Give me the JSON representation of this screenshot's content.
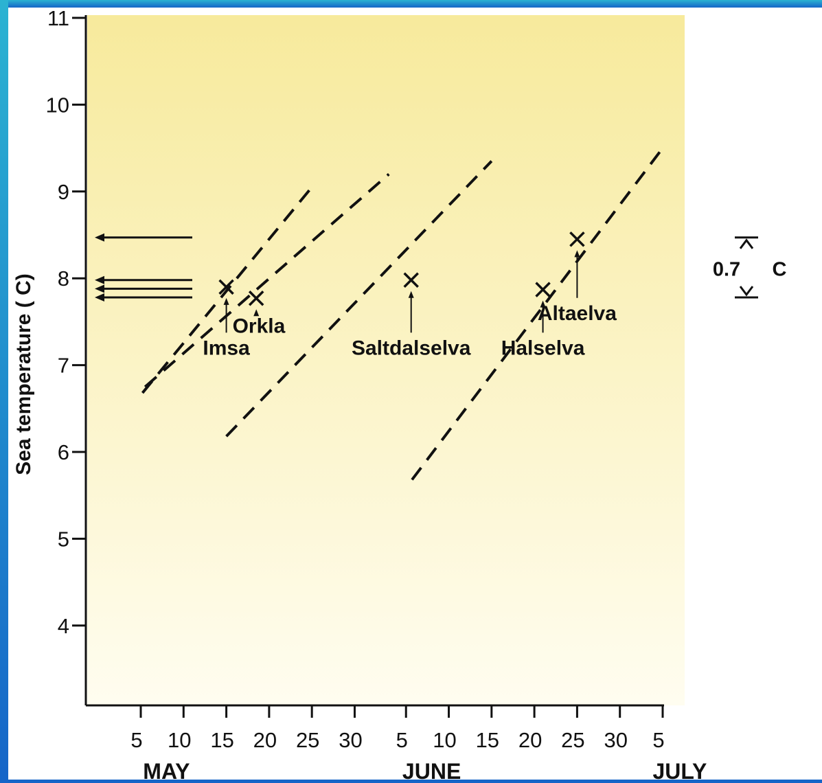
{
  "colors": {
    "frame_top": "#2bb3d2",
    "frame_bottom": "#1565c8",
    "plot_top": "#f7ea9c",
    "plot_bottom": "#fffdf0",
    "ink": "#111111"
  },
  "chart_data": {
    "type": "line",
    "title": "",
    "ylabel": "Sea  temperature  ( C)",
    "xlabel": "",
    "ylim": [
      3,
      11
    ],
    "yticks": [
      4,
      5,
      6,
      7,
      8,
      9,
      10,
      11
    ],
    "x_unit": "day from 1 May",
    "x_ticks": [
      {
        "label": "5",
        "x": 5
      },
      {
        "label": "10",
        "x": 10
      },
      {
        "label": "15",
        "x": 15
      },
      {
        "label": "20",
        "x": 20
      },
      {
        "label": "25",
        "x": 25
      },
      {
        "label": "30",
        "x": 30
      },
      {
        "label": "5",
        "x": 36
      },
      {
        "label": "10",
        "x": 41
      },
      {
        "label": "15",
        "x": 46
      },
      {
        "label": "20",
        "x": 51
      },
      {
        "label": "25",
        "x": 56
      },
      {
        "label": "30",
        "x": 61
      },
      {
        "label": "5",
        "x": 66
      }
    ],
    "months": [
      {
        "label": "MAY",
        "x": 8
      },
      {
        "label": "JUNE",
        "x": 39
      },
      {
        "label": "JULY",
        "x": 68
      }
    ],
    "series": [
      {
        "name": "Imsa",
        "line": [
          [
            5.2,
            6.68
          ],
          [
            25,
            9.05
          ]
        ],
        "marker": [
          15,
          7.9
        ],
        "label_pos": [
          15,
          7.2
        ]
      },
      {
        "name": "Orkla",
        "line": [
          [
            5.5,
            6.75
          ],
          [
            34,
            9.2
          ]
        ],
        "marker": [
          18.5,
          7.77
        ],
        "label_pos": [
          18.8,
          7.45
        ]
      },
      {
        "name": "Saltdalselva",
        "line": [
          [
            15,
            6.18
          ],
          [
            46,
            9.35
          ]
        ],
        "marker": [
          36.6,
          7.98
        ],
        "label_pos": [
          36.6,
          7.2
        ]
      },
      {
        "name": "Halselva",
        "line": [
          [
            36.7,
            5.68
          ],
          [
            66,
            9.5
          ]
        ],
        "marker": [
          52,
          7.87
        ],
        "label_pos": [
          52,
          7.2
        ]
      },
      {
        "name": "Altaelva",
        "line": [
          [
            36.7,
            5.68
          ],
          [
            66,
            9.5
          ]
        ],
        "marker": [
          56,
          8.45
        ],
        "label_pos": [
          56,
          7.6
        ]
      }
    ],
    "reference_arrows": [
      {
        "y": 8.47
      },
      {
        "y": 7.98
      },
      {
        "y": 7.88
      },
      {
        "y": 7.78
      }
    ],
    "scale_indicator": {
      "value_label": "0.7",
      "unit_label": "C",
      "y_top": 8.47,
      "y_bottom": 7.78
    }
  }
}
